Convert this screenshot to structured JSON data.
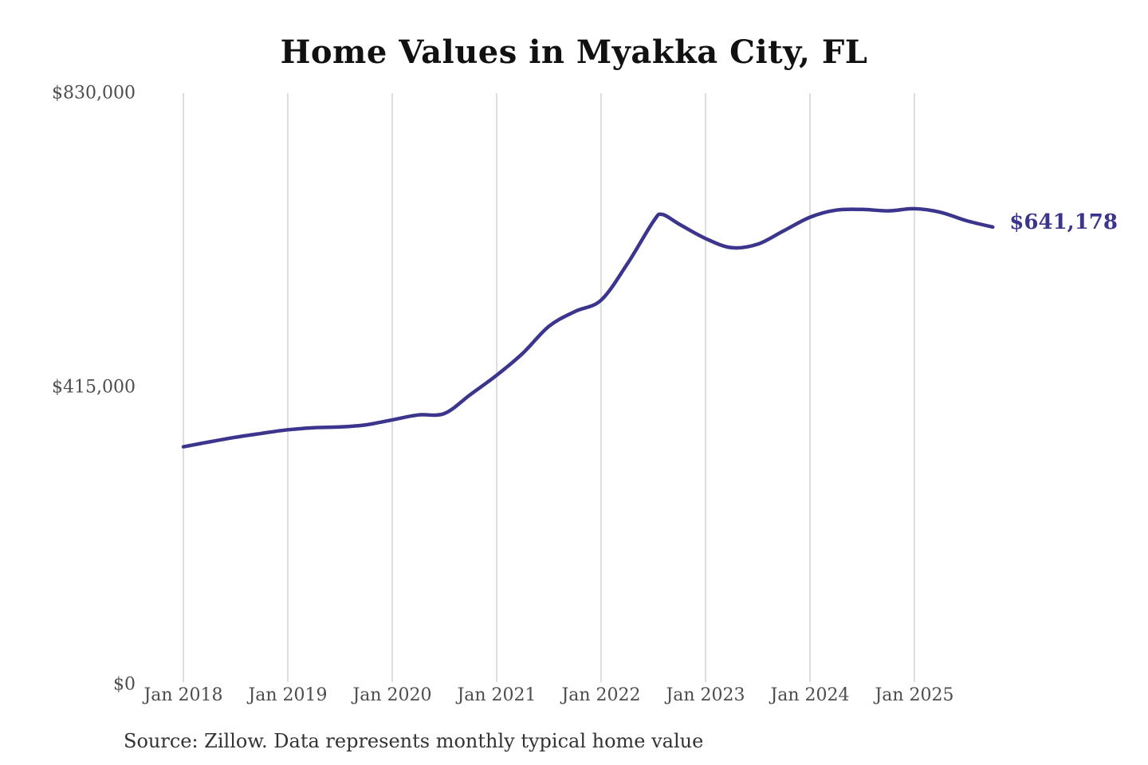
{
  "chart": {
    "title": "Home Values in Myakka City, FL",
    "source": "Source: Zillow. Data represents monthly typical home value",
    "end_label": {
      "text": "$641,178"
    },
    "colors": {
      "line": "#3b358e",
      "grid": "#cccccc",
      "axis_text": "#4d4d4d",
      "title_text": "#111111",
      "source_text": "#333333"
    }
  },
  "chart_data": {
    "type": "line",
    "title": "Home Values in Myakka City, FL",
    "xlabel": "",
    "ylabel": "",
    "ylim": [
      0,
      830000
    ],
    "grid": "vertical-only",
    "legend": false,
    "series_name": "Monthly typical home value",
    "x": [
      "2018-01",
      "2018-04",
      "2018-07",
      "2018-10",
      "2019-01",
      "2019-04",
      "2019-07",
      "2019-10",
      "2020-01",
      "2020-04",
      "2020-07",
      "2020-10",
      "2021-01",
      "2021-04",
      "2021-07",
      "2021-10",
      "2022-01",
      "2022-04",
      "2022-07",
      "2022-08",
      "2022-10",
      "2023-01",
      "2023-04",
      "2023-07",
      "2023-10",
      "2024-01",
      "2024-04",
      "2024-07",
      "2024-10",
      "2025-01",
      "2025-04",
      "2025-07",
      "2025-10"
    ],
    "values": [
      331000,
      338000,
      344500,
      350000,
      355000,
      358000,
      359000,
      362000,
      369000,
      376000,
      378000,
      405000,
      432000,
      463000,
      501000,
      522000,
      538000,
      589000,
      649000,
      659000,
      645000,
      625000,
      612000,
      617000,
      636000,
      655000,
      665000,
      666000,
      664000,
      667000,
      662000,
      650000,
      641178
    ],
    "y_ticks": [
      {
        "label": "$0",
        "value": 0
      },
      {
        "label": "$415,000",
        "value": 415000
      },
      {
        "label": "$830,000",
        "value": 830000
      }
    ],
    "x_ticks": [
      {
        "label": "Jan 2018",
        "month": "2018-01"
      },
      {
        "label": "Jan 2019",
        "month": "2019-01"
      },
      {
        "label": "Jan 2020",
        "month": "2020-01"
      },
      {
        "label": "Jan 2021",
        "month": "2021-01"
      },
      {
        "label": "Jan 2022",
        "month": "2022-01"
      },
      {
        "label": "Jan 2023",
        "month": "2023-01"
      },
      {
        "label": "Jan 2024",
        "month": "2024-01"
      },
      {
        "label": "Jan 2025",
        "month": "2025-01"
      }
    ],
    "end_annotation": {
      "label": "$641,178",
      "month": "2025-10",
      "value": 641178
    }
  }
}
